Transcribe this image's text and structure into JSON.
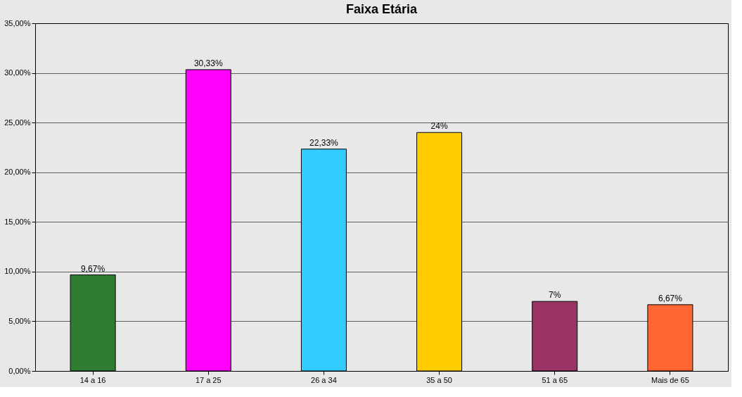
{
  "chart_data": {
    "type": "bar",
    "title": "Faixa Etária",
    "categories": [
      "14 a 16",
      "17 a 25",
      "26 a 34",
      "35 a 50",
      "51 a 65",
      "Mais de 65"
    ],
    "values": [
      9.67,
      30.33,
      22.33,
      24,
      7,
      6.67
    ],
    "colors": [
      "#2e7d32",
      "#ff00ff",
      "#33ccff",
      "#ffcc00",
      "#993366",
      "#ff6633"
    ],
    "value_labels": [
      "9,67%",
      "30,33%",
      "22,33%",
      "24%",
      "7%",
      "6,67%"
    ],
    "ylim": [
      0,
      35
    ],
    "yticks": [
      {
        "value": 0,
        "label": "0,00%"
      },
      {
        "value": 5,
        "label": "5,00%"
      },
      {
        "value": 10,
        "label": "10,00%"
      },
      {
        "value": 15,
        "label": "15,00%"
      },
      {
        "value": 20,
        "label": "20,00%"
      },
      {
        "value": 25,
        "label": "25,00%"
      },
      {
        "value": 30,
        "label": "30,00%"
      },
      {
        "value": 35,
        "label": "35,00%"
      }
    ],
    "grid": "y"
  }
}
